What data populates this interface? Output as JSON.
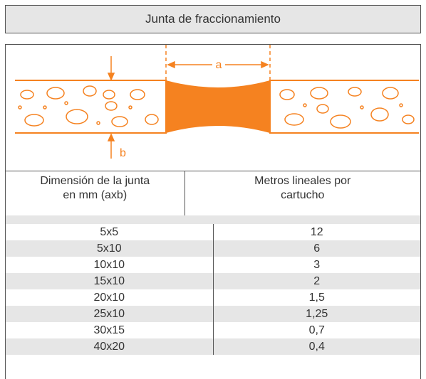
{
  "header": {
    "title": "Junta de fraccionamiento"
  },
  "diagram": {
    "label_a": "a",
    "label_b": "b"
  },
  "table": {
    "columns": [
      "Dimensión de la junta en mm (axb)",
      "Metros lineales por cartucho"
    ],
    "rows": [
      [
        "5x5",
        "12"
      ],
      [
        "5x10",
        "6"
      ],
      [
        "10x10",
        "3"
      ],
      [
        "15x10",
        "2"
      ],
      [
        "20x10",
        "1,5"
      ],
      [
        "25x10",
        "1,25"
      ],
      [
        "30x15",
        "0,7"
      ],
      [
        "40x20",
        "0,4"
      ]
    ]
  }
}
